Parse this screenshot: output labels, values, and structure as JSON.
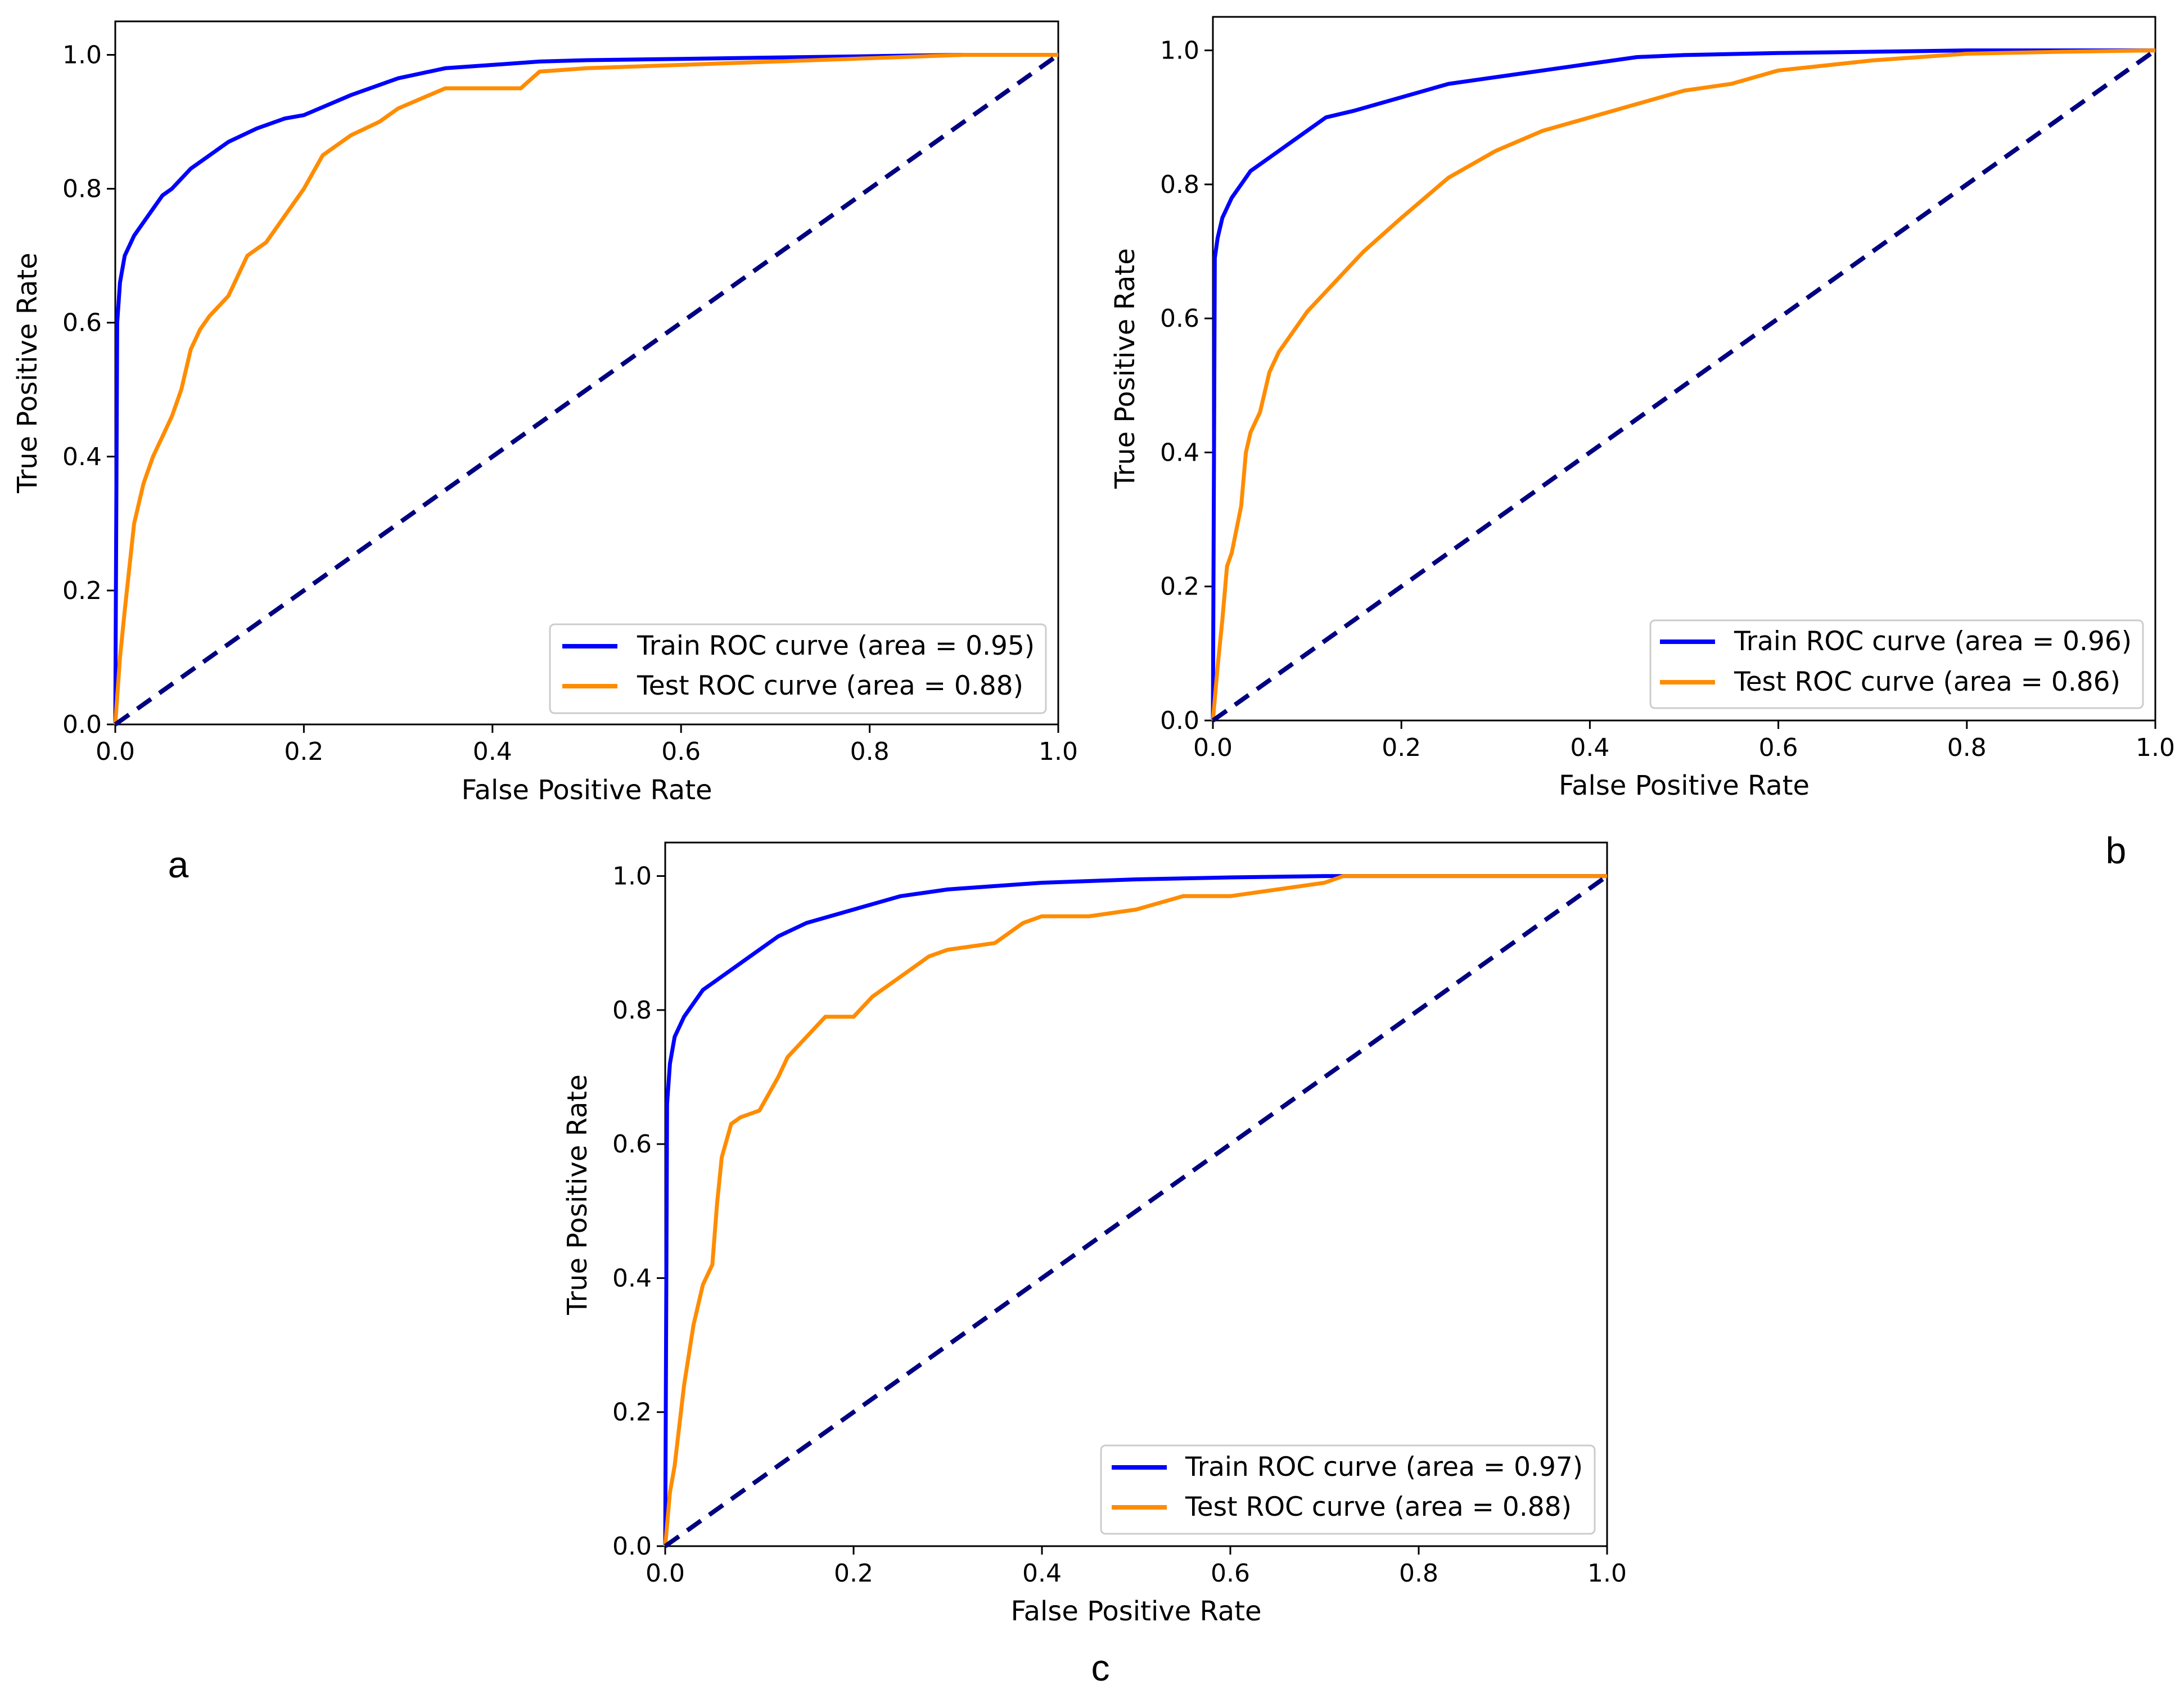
{
  "chart_data": [
    {
      "type": "line",
      "panel_label": "a",
      "xlabel": "False Positive Rate",
      "ylabel": "True Positive Rate",
      "xlim": [
        0.0,
        1.0
      ],
      "ylim": [
        0.0,
        1.05
      ],
      "xticks": [
        "0.0",
        "0.2",
        "0.4",
        "0.6",
        "0.8",
        "1.0"
      ],
      "yticks": [
        "0.0",
        "0.2",
        "0.4",
        "0.6",
        "0.8",
        "1.0"
      ],
      "grid": false,
      "legend_position": "lower-right",
      "series": [
        {
          "name": "Train ROC curve (area = 0.95)",
          "color": "#0000ff",
          "x": [
            0,
            0.002,
            0.005,
            0.01,
            0.02,
            0.03,
            0.04,
            0.05,
            0.06,
            0.08,
            0.1,
            0.12,
            0.15,
            0.18,
            0.2,
            0.25,
            0.3,
            0.35,
            0.4,
            0.45,
            0.5,
            0.6,
            0.7,
            0.8,
            0.9,
            1.0
          ],
          "y": [
            0,
            0.6,
            0.66,
            0.7,
            0.73,
            0.75,
            0.77,
            0.79,
            0.8,
            0.83,
            0.85,
            0.87,
            0.89,
            0.905,
            0.91,
            0.94,
            0.965,
            0.98,
            0.985,
            0.99,
            0.992,
            0.994,
            0.996,
            0.998,
            1.0,
            1.0
          ]
        },
        {
          "name": "Test ROC curve (area = 0.88)",
          "color": "#ff8c00",
          "x": [
            0,
            0.005,
            0.01,
            0.02,
            0.03,
            0.04,
            0.05,
            0.06,
            0.07,
            0.08,
            0.09,
            0.1,
            0.12,
            0.14,
            0.16,
            0.18,
            0.2,
            0.22,
            0.25,
            0.28,
            0.3,
            0.35,
            0.4,
            0.43,
            0.45,
            0.5,
            0.6,
            0.7,
            0.8,
            0.9,
            1.0
          ],
          "y": [
            0,
            0.1,
            0.17,
            0.3,
            0.36,
            0.4,
            0.43,
            0.46,
            0.5,
            0.56,
            0.59,
            0.61,
            0.64,
            0.7,
            0.72,
            0.76,
            0.8,
            0.85,
            0.88,
            0.9,
            0.92,
            0.95,
            0.95,
            0.95,
            0.975,
            0.98,
            0.985,
            0.99,
            0.995,
            1.0,
            1.0
          ]
        },
        {
          "name": "",
          "color": "#000080",
          "dashed": true,
          "x": [
            0,
            1
          ],
          "y": [
            0,
            1
          ]
        }
      ]
    },
    {
      "type": "line",
      "panel_label": "b",
      "xlabel": "False Positive Rate",
      "ylabel": "True Positive Rate",
      "xlim": [
        0.0,
        1.0
      ],
      "ylim": [
        0.0,
        1.05
      ],
      "xticks": [
        "0.0",
        "0.2",
        "0.4",
        "0.6",
        "0.8",
        "1.0"
      ],
      "yticks": [
        "0.0",
        "0.2",
        "0.4",
        "0.6",
        "0.8",
        "1.0"
      ],
      "grid": false,
      "legend_position": "lower-right",
      "series": [
        {
          "name": "Train ROC curve (area = 0.96)",
          "color": "#0000ff",
          "x": [
            0,
            0.002,
            0.005,
            0.01,
            0.02,
            0.03,
            0.04,
            0.05,
            0.07,
            0.1,
            0.12,
            0.15,
            0.2,
            0.25,
            0.3,
            0.35,
            0.4,
            0.45,
            0.5,
            0.6,
            0.7,
            0.8,
            0.9,
            1.0
          ],
          "y": [
            0,
            0.69,
            0.72,
            0.75,
            0.78,
            0.8,
            0.82,
            0.83,
            0.85,
            0.88,
            0.9,
            0.91,
            0.93,
            0.95,
            0.96,
            0.97,
            0.98,
            0.99,
            0.993,
            0.996,
            0.998,
            1.0,
            1.0,
            1.0
          ]
        },
        {
          "name": "Test ROC curve (area = 0.86)",
          "color": "#ff8c00",
          "x": [
            0,
            0.005,
            0.01,
            0.015,
            0.02,
            0.03,
            0.035,
            0.04,
            0.05,
            0.06,
            0.07,
            0.08,
            0.1,
            0.12,
            0.14,
            0.16,
            0.2,
            0.25,
            0.3,
            0.35,
            0.4,
            0.45,
            0.5,
            0.55,
            0.6,
            0.7,
            0.8,
            0.9,
            1.0
          ],
          "y": [
            0,
            0.08,
            0.15,
            0.23,
            0.25,
            0.32,
            0.4,
            0.43,
            0.46,
            0.52,
            0.55,
            0.57,
            0.61,
            0.64,
            0.67,
            0.7,
            0.75,
            0.81,
            0.85,
            0.88,
            0.9,
            0.92,
            0.94,
            0.95,
            0.97,
            0.985,
            0.995,
            0.998,
            1.0
          ]
        },
        {
          "name": "",
          "color": "#000080",
          "dashed": true,
          "x": [
            0,
            1
          ],
          "y": [
            0,
            1
          ]
        }
      ]
    },
    {
      "type": "line",
      "panel_label": "c",
      "xlabel": "False Positive Rate",
      "ylabel": "True Positive Rate",
      "xlim": [
        0.0,
        1.0
      ],
      "ylim": [
        0.0,
        1.05
      ],
      "xticks": [
        "0.0",
        "0.2",
        "0.4",
        "0.6",
        "0.8",
        "1.0"
      ],
      "yticks": [
        "0.0",
        "0.2",
        "0.4",
        "0.6",
        "0.8",
        "1.0"
      ],
      "grid": false,
      "legend_position": "lower-right",
      "series": [
        {
          "name": "Train ROC curve (area = 0.97)",
          "color": "#0000ff",
          "x": [
            0,
            0.002,
            0.005,
            0.01,
            0.02,
            0.03,
            0.04,
            0.05,
            0.06,
            0.08,
            0.1,
            0.12,
            0.15,
            0.2,
            0.25,
            0.3,
            0.35,
            0.4,
            0.5,
            0.6,
            0.7,
            0.8,
            1.0
          ],
          "y": [
            0,
            0.66,
            0.72,
            0.76,
            0.79,
            0.81,
            0.83,
            0.84,
            0.85,
            0.87,
            0.89,
            0.91,
            0.93,
            0.95,
            0.97,
            0.98,
            0.985,
            0.99,
            0.995,
            0.998,
            1.0,
            1.0,
            1.0
          ]
        },
        {
          "name": "Test ROC curve (area = 0.88)",
          "color": "#ff8c00",
          "x": [
            0,
            0.005,
            0.01,
            0.02,
            0.03,
            0.04,
            0.05,
            0.055,
            0.06,
            0.07,
            0.08,
            0.1,
            0.12,
            0.13,
            0.15,
            0.17,
            0.2,
            0.22,
            0.25,
            0.28,
            0.3,
            0.35,
            0.38,
            0.4,
            0.45,
            0.5,
            0.55,
            0.6,
            0.65,
            0.7,
            0.72,
            0.8,
            0.9,
            1.0
          ],
          "y": [
            0,
            0.08,
            0.12,
            0.24,
            0.33,
            0.39,
            0.42,
            0.51,
            0.58,
            0.63,
            0.64,
            0.65,
            0.7,
            0.73,
            0.76,
            0.79,
            0.79,
            0.82,
            0.85,
            0.88,
            0.89,
            0.9,
            0.93,
            0.94,
            0.94,
            0.95,
            0.97,
            0.97,
            0.98,
            0.99,
            1.0,
            1.0,
            1.0,
            1.0
          ]
        },
        {
          "name": "",
          "color": "#000080",
          "dashed": true,
          "x": [
            0,
            1
          ],
          "y": [
            0,
            1
          ]
        }
      ]
    }
  ]
}
